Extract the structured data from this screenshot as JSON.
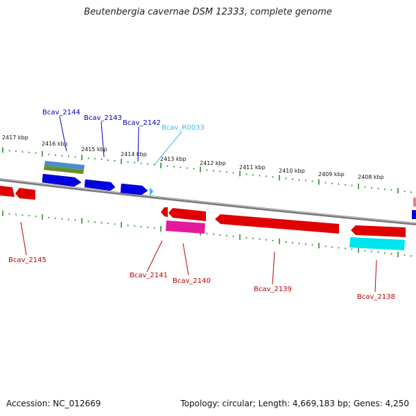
{
  "title": "Beutenbergia cavernae DSM 12333, complete genome",
  "footer": {
    "accession": "Accession: NC_012669",
    "topology": "Topology: circular; Length: 4,669,183 bp; Genes: 4,250"
  },
  "colors": {
    "backbone": "#7a7a7a",
    "ticks": "#2a8a2a",
    "forward_gene": "#0000e0",
    "reverse_gene": "#e00000",
    "rna": "#33bbee",
    "pink_feature": "#e6199a",
    "cyan_feature": "#00e5ee",
    "forward_label": "#0000bb",
    "reverse_label": "#bb0000",
    "rna_label": "#33bbee"
  },
  "scale_labels": [
    "2417 kbp",
    "2416 kbp",
    "2415 kbp",
    "2414 kbp",
    "2413 kbp",
    "2412 kbp",
    "2411 kbp",
    "2410 kbp",
    "2409 kbp",
    "2408 kbp"
  ],
  "genes_upper": [
    {
      "id": "Bcav_2144",
      "type": "forward"
    },
    {
      "id": "Bcav_2143",
      "type": "forward"
    },
    {
      "id": "Bcav_2142",
      "type": "forward"
    },
    {
      "id": "Bcav_R0033",
      "type": "rna"
    }
  ],
  "genes_lower": [
    {
      "id": "Bcav_2145",
      "type": "reverse"
    },
    {
      "id": "Bcav_2141",
      "type": "reverse"
    },
    {
      "id": "Bcav_2140",
      "type": "reverse"
    },
    {
      "id": "Bcav_2139",
      "type": "reverse"
    },
    {
      "id": "Bcav_2138",
      "type": "reverse"
    }
  ]
}
